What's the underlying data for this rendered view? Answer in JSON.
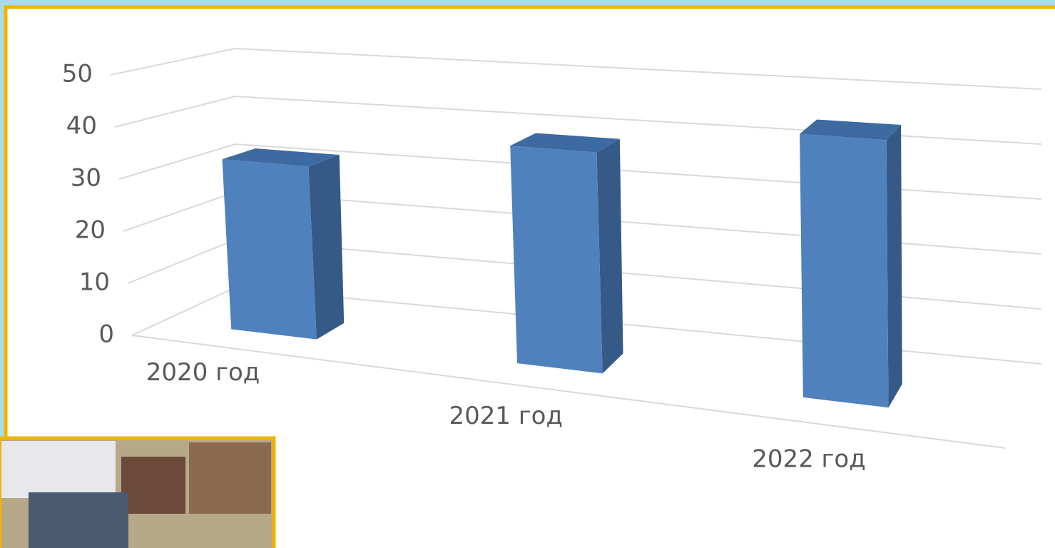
{
  "chart_data": {
    "type": "bar3d",
    "categories": [
      "2020 год",
      "2021 год",
      "2022 год"
    ],
    "values": [
      33,
      40,
      46
    ],
    "color": "#4f81bd",
    "ylim": [
      0,
      50
    ],
    "yticks": [
      0,
      10,
      20,
      30,
      40,
      50
    ],
    "grid": true
  }
}
